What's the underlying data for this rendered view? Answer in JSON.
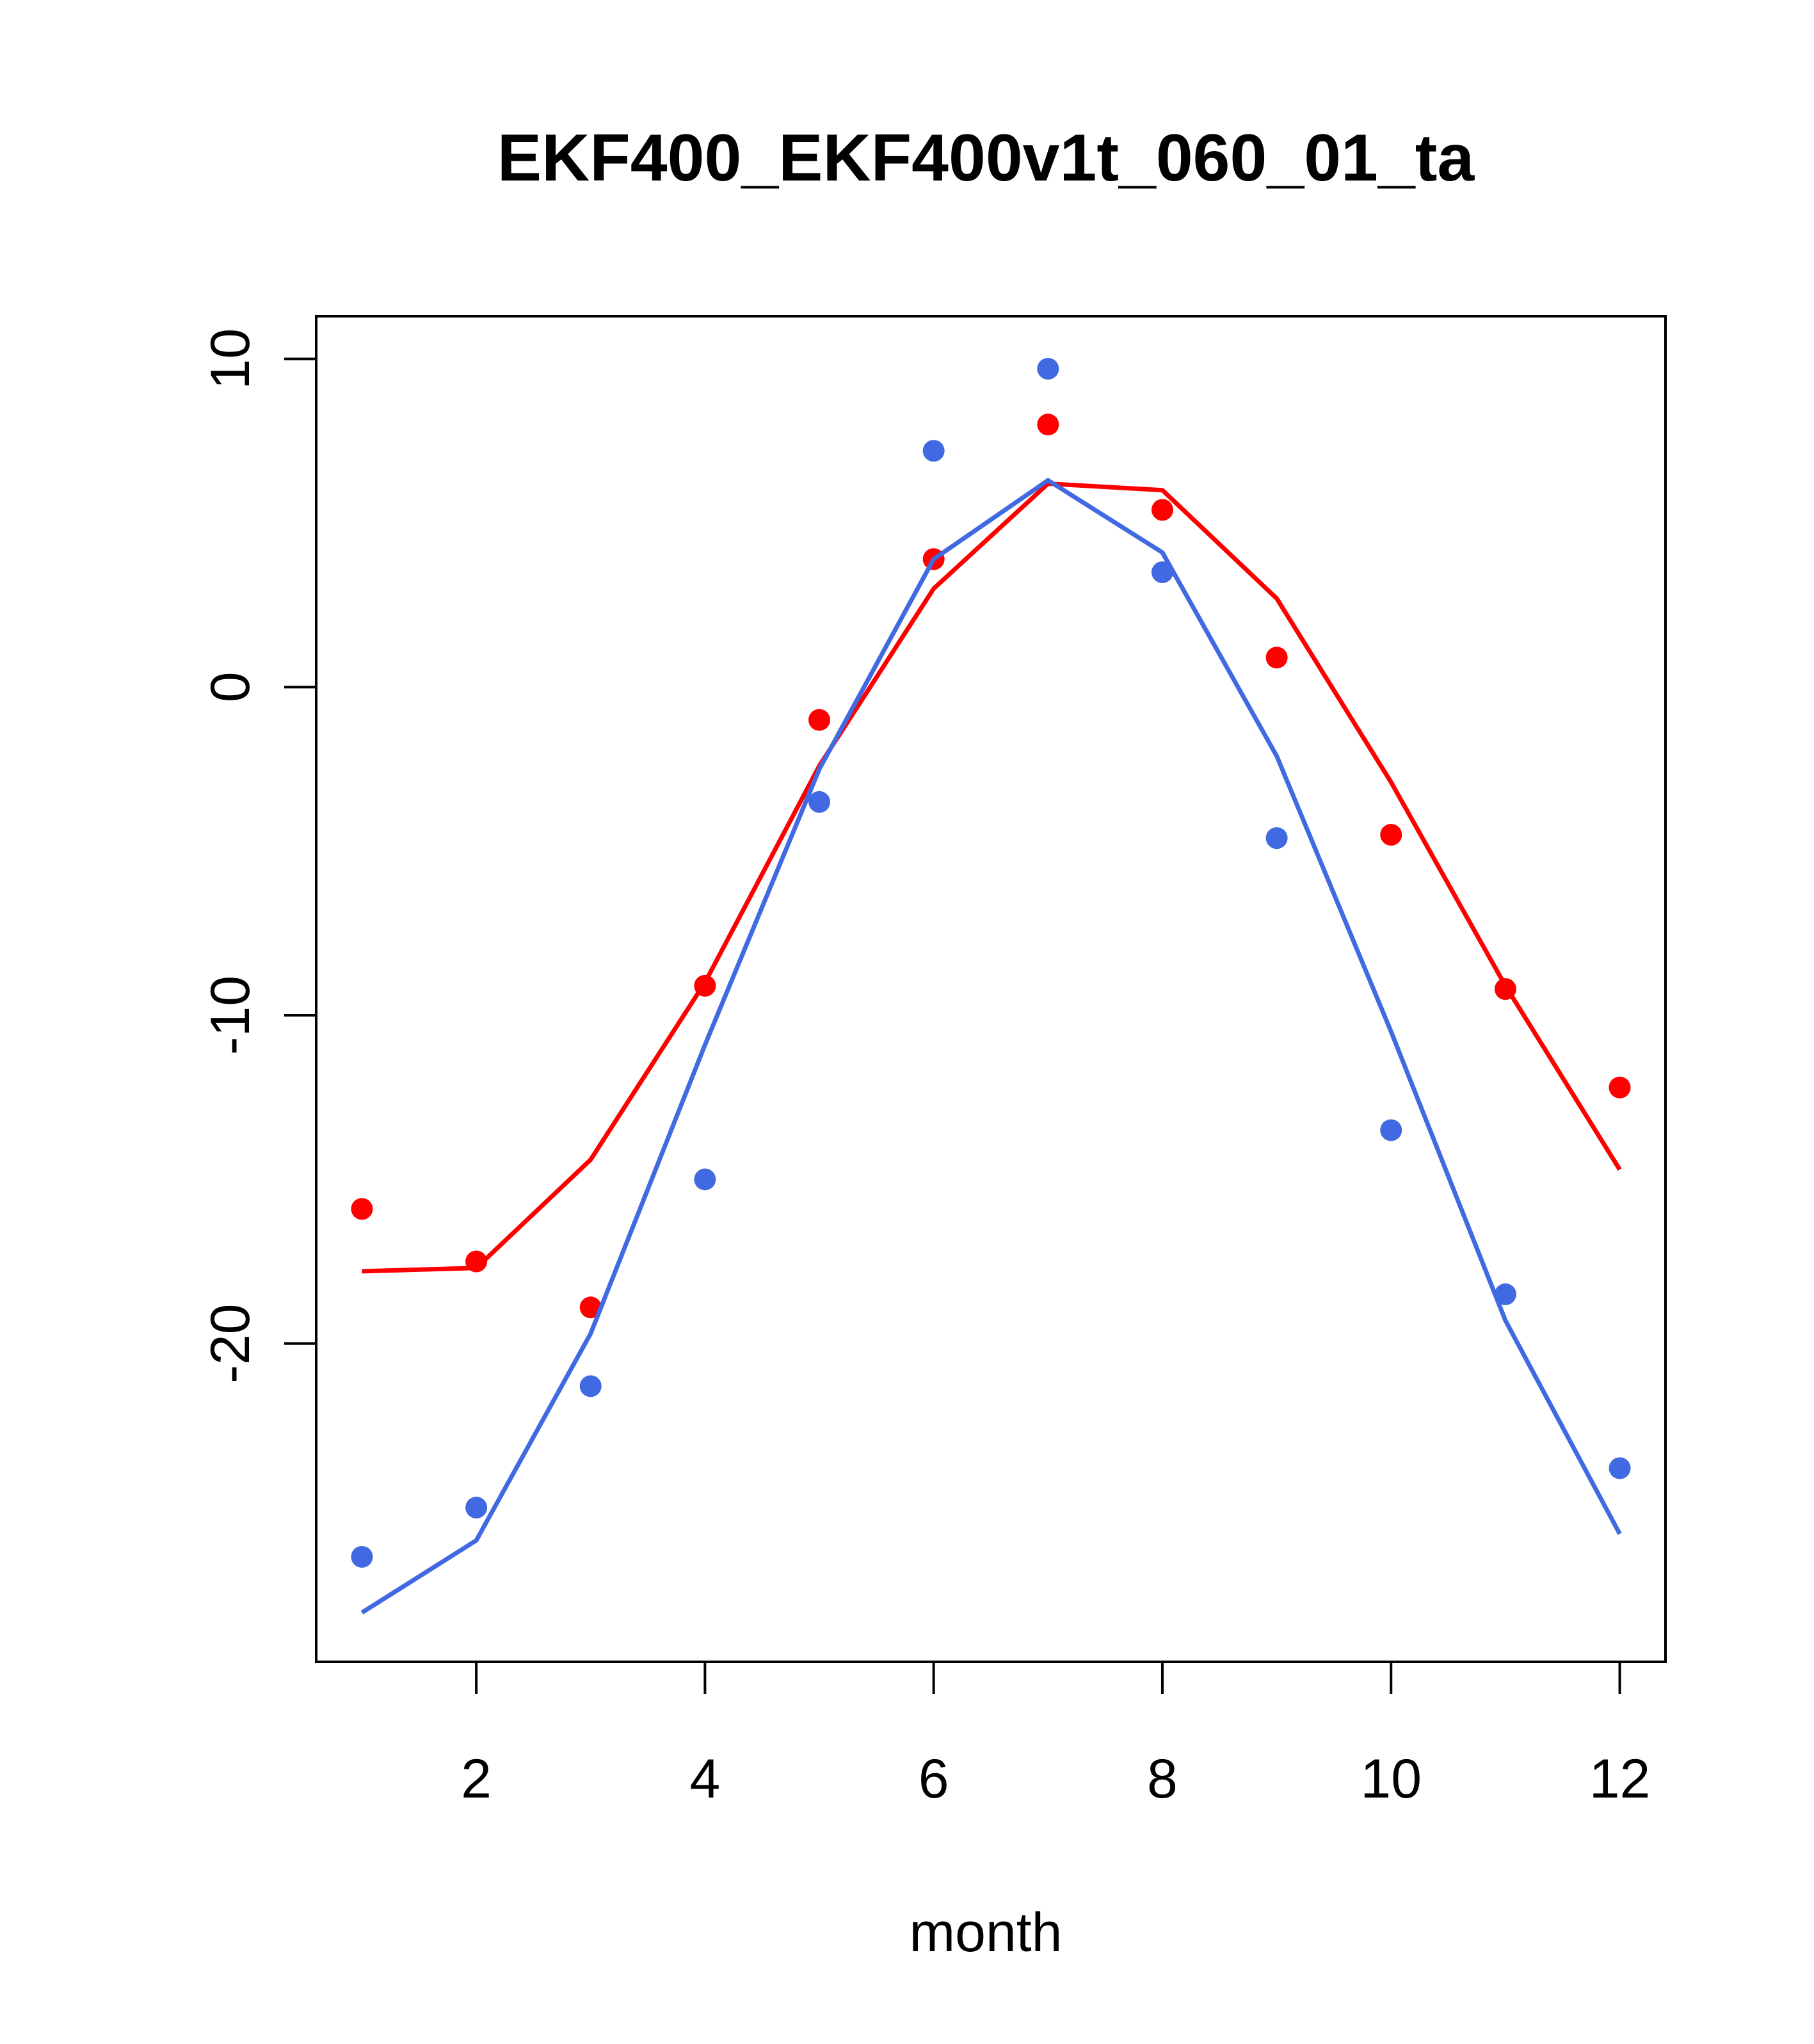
{
  "chart_data": {
    "type": "line",
    "title": "EKF400_EKF400v1t_060_01_ta",
    "xlabel": "month",
    "ylabel": "",
    "xlim": [
      0.6,
      12.4
    ],
    "ylim": [
      -29.7,
      11.3
    ],
    "x_ticks": [
      2,
      4,
      6,
      8,
      10,
      12
    ],
    "x_tick_labels": [
      "2",
      "4",
      "6",
      "8",
      "10",
      "12"
    ],
    "y_ticks": [
      -20,
      -10,
      0,
      10
    ],
    "y_tick_labels": [
      "-20",
      "-10",
      "0",
      "10"
    ],
    "grid": false,
    "legend": "none",
    "x": [
      1,
      2,
      3,
      4,
      5,
      6,
      7,
      8,
      9,
      10,
      11,
      12
    ],
    "series": [
      {
        "color": "#ff0000",
        "points": [
          -15.9,
          -17.5,
          -18.9,
          -9.1,
          -1.0,
          3.9,
          8.0,
          5.4,
          0.9,
          -4.5,
          -9.2,
          -12.2
        ],
        "line": [
          -17.8,
          -17.7,
          -14.4,
          -9.0,
          -2.4,
          3.0,
          6.2,
          6.0,
          2.7,
          -2.9,
          -9.1,
          -14.7
        ]
      },
      {
        "color": "#4169e1",
        "points": [
          -26.5,
          -25.0,
          -21.3,
          -15.0,
          -3.5,
          7.2,
          9.7,
          3.5,
          -4.6,
          -13.5,
          -18.5,
          -23.8
        ],
        "line": [
          -28.2,
          -26.0,
          -19.7,
          -10.9,
          -2.5,
          3.9,
          6.3,
          4.1,
          -2.1,
          -10.5,
          -19.3,
          -25.8
        ]
      }
    ]
  }
}
